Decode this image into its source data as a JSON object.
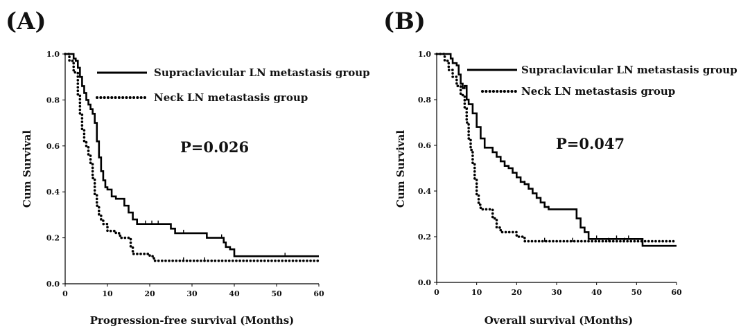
{
  "chart_data": [
    {
      "type": "line",
      "panel": "(A)",
      "xlabel": "Progression-free survival (Months)",
      "ylabel": "Cum Survival",
      "xlim": [
        0,
        60
      ],
      "ylim": [
        0,
        1.0
      ],
      "xticks": [
        "0",
        "10",
        "20",
        "30",
        "40",
        "50",
        "60"
      ],
      "yticks": [
        "0.0",
        "0.2",
        "0.4",
        "0.6",
        "0.8",
        "1.0"
      ],
      "annotation": "P=0.026",
      "legend_position": "top-right",
      "series": [
        {
          "name": "Supraclavicular LN metastasis group",
          "style": "solid",
          "points": [
            [
              0,
              1.0
            ],
            [
              1.5,
              1.0
            ],
            [
              2,
              0.98
            ],
            [
              2.5,
              0.97
            ],
            [
              3,
              0.94
            ],
            [
              3.5,
              0.9
            ],
            [
              4,
              0.86
            ],
            [
              4.5,
              0.83
            ],
            [
              5,
              0.8
            ],
            [
              5.5,
              0.78
            ],
            [
              6,
              0.76
            ],
            [
              6.5,
              0.74
            ],
            [
              7,
              0.7
            ],
            [
              7.5,
              0.62
            ],
            [
              8,
              0.55
            ],
            [
              8.5,
              0.49
            ],
            [
              9,
              0.45
            ],
            [
              9.5,
              0.42
            ],
            [
              10,
              0.41
            ],
            [
              11,
              0.38
            ],
            [
              12,
              0.37
            ],
            [
              13,
              0.37
            ],
            [
              14,
              0.34
            ],
            [
              15,
              0.31
            ],
            [
              16,
              0.28
            ],
            [
              17,
              0.26
            ],
            [
              24,
              0.26
            ],
            [
              25,
              0.24
            ],
            [
              26,
              0.22
            ],
            [
              33,
              0.22
            ],
            [
              33.5,
              0.2
            ],
            [
              37,
              0.2
            ],
            [
              37.5,
              0.18
            ],
            [
              38,
              0.16
            ],
            [
              39,
              0.15
            ],
            [
              40,
              0.12
            ],
            [
              60,
              0.12
            ]
          ],
          "censor_x": [
            19,
            20.5,
            22,
            28,
            37,
            52
          ]
        },
        {
          "name": "Neck LN metastasis group",
          "style": "dotted",
          "points": [
            [
              0,
              1.0
            ],
            [
              1,
              0.97
            ],
            [
              2,
              0.92
            ],
            [
              3,
              0.82
            ],
            [
              3.5,
              0.74
            ],
            [
              4,
              0.67
            ],
            [
              4.5,
              0.62
            ],
            [
              5,
              0.6
            ],
            [
              5.5,
              0.56
            ],
            [
              6,
              0.52
            ],
            [
              6.5,
              0.46
            ],
            [
              7,
              0.39
            ],
            [
              7.5,
              0.34
            ],
            [
              8,
              0.3
            ],
            [
              8.5,
              0.28
            ],
            [
              9,
              0.26
            ],
            [
              10,
              0.23
            ],
            [
              12,
              0.22
            ],
            [
              13,
              0.2
            ],
            [
              15,
              0.2
            ],
            [
              15.5,
              0.16
            ],
            [
              16,
              0.13
            ],
            [
              19,
              0.13
            ],
            [
              20,
              0.12
            ],
            [
              21,
              0.1
            ],
            [
              60,
              0.1
            ]
          ],
          "censor_x": [
            28,
            33
          ]
        }
      ]
    },
    {
      "type": "line",
      "panel": "(B)",
      "xlabel": "Overall survival (Months)",
      "ylabel": "Cum Survival",
      "xlim": [
        0,
        60
      ],
      "ylim": [
        0,
        1.0
      ],
      "xticks": [
        "0",
        "10",
        "20",
        "30",
        "40",
        "50",
        "60"
      ],
      "yticks": [
        "0.0",
        "0.2",
        "0.4",
        "0.6",
        "0.8",
        "1.0"
      ],
      "annotation": "P=0.047",
      "legend_position": "top-right",
      "series": [
        {
          "name": "Supraclavicular LN metastasis group",
          "style": "solid",
          "points": [
            [
              0,
              1.0
            ],
            [
              3,
              1.0
            ],
            [
              3.5,
              0.98
            ],
            [
              4,
              0.96
            ],
            [
              5,
              0.95
            ],
            [
              5.5,
              0.91
            ],
            [
              6,
              0.87
            ],
            [
              6.5,
              0.85
            ],
            [
              7,
              0.86
            ],
            [
              7.5,
              0.8
            ],
            [
              8,
              0.78
            ],
            [
              9,
              0.74
            ],
            [
              10,
              0.68
            ],
            [
              11,
              0.63
            ],
            [
              12,
              0.59
            ],
            [
              14,
              0.57
            ],
            [
              15,
              0.55
            ],
            [
              16,
              0.53
            ],
            [
              17,
              0.51
            ],
            [
              18,
              0.5
            ],
            [
              19,
              0.48
            ],
            [
              20,
              0.46
            ],
            [
              21,
              0.44
            ],
            [
              22,
              0.43
            ],
            [
              23,
              0.41
            ],
            [
              24,
              0.39
            ],
            [
              25,
              0.37
            ],
            [
              26,
              0.35
            ],
            [
              27,
              0.33
            ],
            [
              28,
              0.32
            ],
            [
              34,
              0.32
            ],
            [
              35,
              0.28
            ],
            [
              36,
              0.24
            ],
            [
              37,
              0.22
            ],
            [
              38,
              0.19
            ],
            [
              51,
              0.19
            ],
            [
              51.5,
              0.16
            ],
            [
              60,
              0.16
            ]
          ],
          "censor_x": [
            17,
            22,
            28,
            37,
            40,
            45,
            48
          ]
        },
        {
          "name": "Neck LN metastasis group",
          "style": "dotted",
          "points": [
            [
              0,
              1.0
            ],
            [
              2,
              0.97
            ],
            [
              3,
              0.93
            ],
            [
              4,
              0.9
            ],
            [
              5,
              0.86
            ],
            [
              6,
              0.82
            ],
            [
              7,
              0.76
            ],
            [
              7.5,
              0.7
            ],
            [
              8,
              0.63
            ],
            [
              8.5,
              0.58
            ],
            [
              9,
              0.52
            ],
            [
              9.5,
              0.45
            ],
            [
              10,
              0.38
            ],
            [
              10.5,
              0.34
            ],
            [
              11,
              0.32
            ],
            [
              13,
              0.32
            ],
            [
              14,
              0.28
            ],
            [
              15,
              0.24
            ],
            [
              16,
              0.22
            ],
            [
              19,
              0.22
            ],
            [
              20,
              0.2
            ],
            [
              22,
              0.18
            ],
            [
              60,
              0.18
            ]
          ],
          "censor_x": [
            27,
            34,
            43,
            47
          ]
        }
      ]
    }
  ]
}
